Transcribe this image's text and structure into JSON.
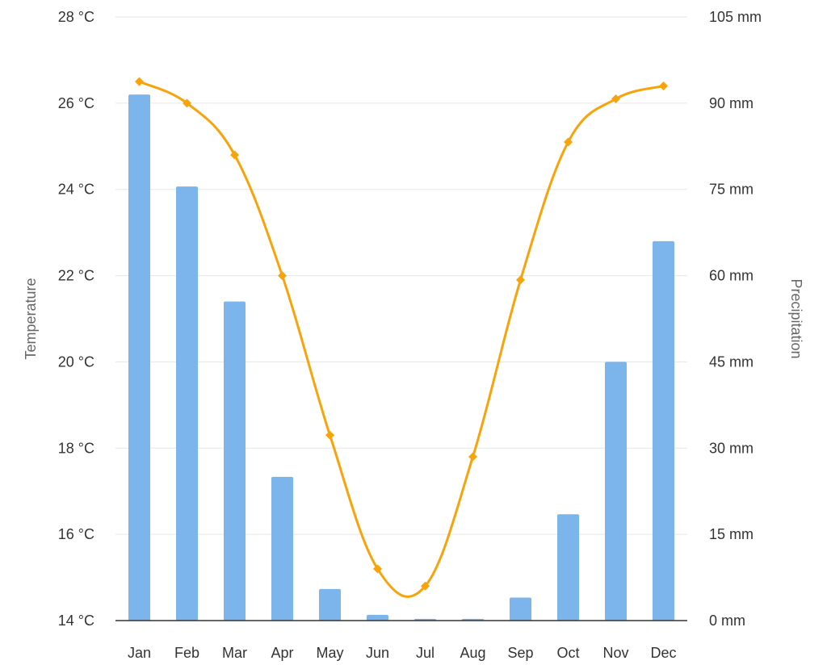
{
  "chart_data": {
    "type": "bar",
    "categories": [
      "Jan",
      "Feb",
      "Mar",
      "Apr",
      "May",
      "Jun",
      "Jul",
      "Aug",
      "Sep",
      "Oct",
      "Nov",
      "Dec"
    ],
    "series": [
      {
        "name": "Precipitation",
        "type": "bar",
        "axis": "right",
        "color": "#7cb5ec",
        "values": [
          91.5,
          75.5,
          55.5,
          25,
          5.5,
          1,
          0.3,
          0.3,
          4,
          18.5,
          45,
          66
        ]
      },
      {
        "name": "Temperature",
        "type": "line",
        "axis": "left",
        "color": "#f7a30a",
        "values": [
          26.5,
          26.0,
          24.8,
          22.0,
          18.3,
          15.2,
          14.8,
          17.8,
          21.9,
          25.1,
          26.1,
          26.4
        ]
      }
    ],
    "left_axis": {
      "title": "Temperature",
      "ylim": [
        14,
        28
      ],
      "ticks": [
        14,
        16,
        18,
        20,
        22,
        24,
        26,
        28
      ],
      "tick_labels": [
        "14 °C",
        "16 °C",
        "18 °C",
        "20 °C",
        "22 °C",
        "24 °C",
        "26 °C",
        "28 °C"
      ]
    },
    "right_axis": {
      "title": "Precipitation",
      "ylim": [
        0,
        105
      ],
      "ticks": [
        0,
        15,
        30,
        45,
        60,
        75,
        90,
        105
      ],
      "tick_labels": [
        "0 mm",
        "15 mm",
        "30 mm",
        "45 mm",
        "60 mm",
        "75 mm",
        "90 mm",
        "105 mm"
      ]
    },
    "grid": true,
    "legend": "none"
  }
}
